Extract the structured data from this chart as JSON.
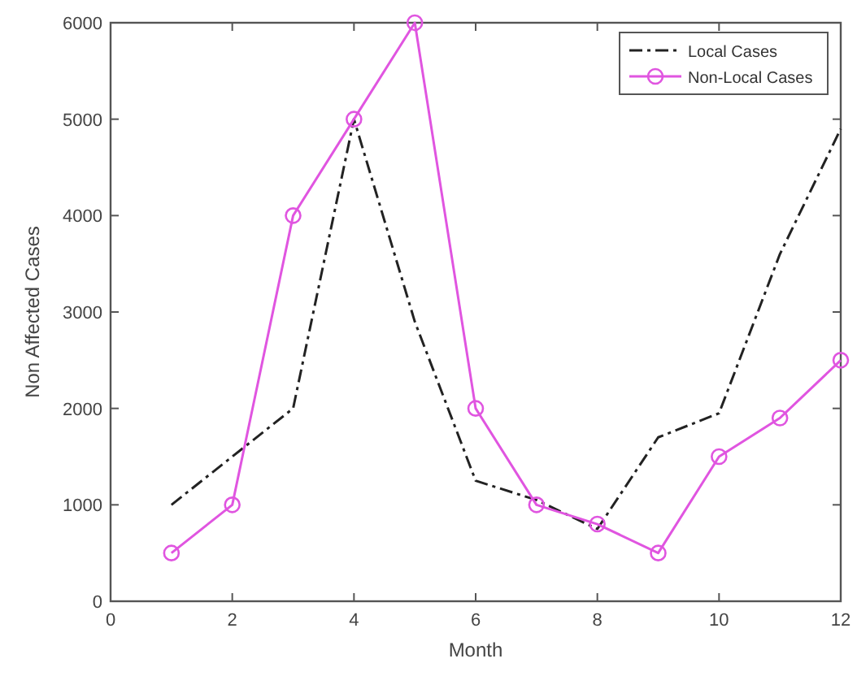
{
  "chart_data": {
    "type": "line",
    "xlabel": "Month",
    "ylabel": "Non Affected Cases",
    "x": [
      1,
      2,
      3,
      4,
      5,
      6,
      7,
      8,
      9,
      10,
      11,
      12
    ],
    "series": [
      {
        "name": "Local Cases",
        "color": "#222222",
        "line_style": "dashdot",
        "marker": "none",
        "values": [
          1000,
          1500,
          2000,
          5000,
          2900,
          1250,
          1050,
          750,
          1700,
          1950,
          3600,
          4900
        ]
      },
      {
        "name": "Non-Local Cases",
        "color": "#e055e0",
        "line_style": "solid",
        "marker": "circle",
        "values": [
          500,
          1000,
          4000,
          5000,
          6000,
          2000,
          1000,
          800,
          500,
          1500,
          1900,
          2500
        ]
      }
    ],
    "xlim": [
      0,
      12
    ],
    "xticks": [
      0,
      2,
      4,
      6,
      8,
      10,
      12
    ],
    "ylim": [
      0,
      6000
    ],
    "yticks": [
      0,
      1000,
      2000,
      3000,
      4000,
      5000,
      6000
    ],
    "grid": false,
    "legend": "top right"
  }
}
